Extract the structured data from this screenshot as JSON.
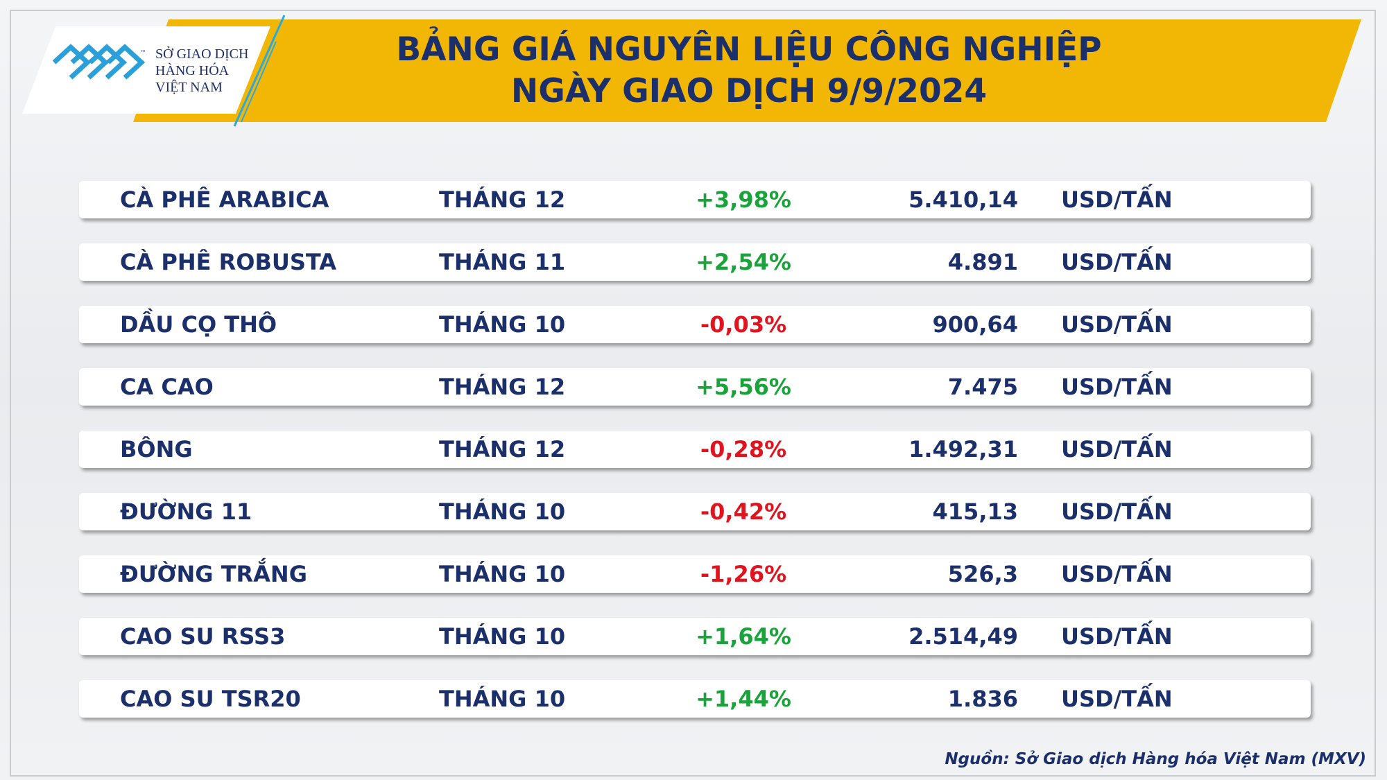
{
  "logo": {
    "lines": [
      "SỞ GIAO DỊCH",
      "HÀNG HÓA",
      "VIỆT NAM"
    ],
    "tm": "™"
  },
  "header": {
    "title_lines": [
      "BẢNG GIÁ NGUYÊN LIỆU CÔNG NGHIỆP",
      "NGÀY GIAO DỊCH 9/9/2024"
    ]
  },
  "table": {
    "rows": [
      {
        "name": "CÀ PHÊ ARABICA",
        "month": "THÁNG 12",
        "change": "+3,98%",
        "price": "5.410,14",
        "unit": "USD/TẤN",
        "color": "#1aa33a"
      },
      {
        "name": "CÀ PHÊ ROBUSTA",
        "month": "THÁNG 11",
        "change": "+2,54%",
        "price": "4.891",
        "unit": "USD/TẤN",
        "color": "#1aa33a"
      },
      {
        "name": "DẦU CỌ THÔ",
        "month": "THÁNG 10",
        "change": "-0,03%",
        "price": "900,64",
        "unit": "USD/TẤN",
        "color": "#e0141e"
      },
      {
        "name": "CA CAO",
        "month": "THÁNG 12",
        "change": "+5,56%",
        "price": "7.475",
        "unit": "USD/TẤN",
        "color": "#1aa33a"
      },
      {
        "name": "BÔNG",
        "month": "THÁNG 12",
        "change": "-0,28%",
        "price": "1.492,31",
        "unit": "USD/TẤN",
        "color": "#e0141e"
      },
      {
        "name": "ĐƯỜNG 11",
        "month": "THÁNG 10",
        "change": "-0,42%",
        "price": "415,13",
        "unit": "USD/TẤN",
        "color": "#e0141e"
      },
      {
        "name": "ĐƯỜNG TRẮNG",
        "month": "THÁNG 10",
        "change": "-1,26%",
        "price": "526,3",
        "unit": "USD/TẤN",
        "color": "#e0141e"
      },
      {
        "name": "CAO SU RSS3",
        "month": "THÁNG 10",
        "change": "+1,64%",
        "price": "2.514,49",
        "unit": "USD/TẤN",
        "color": "#1aa33a"
      },
      {
        "name": "CAO SU TSR20",
        "month": "THÁNG 10",
        "change": "+1,44%",
        "price": "1.836",
        "unit": "USD/TẤN",
        "color": "#1aa33a"
      }
    ]
  },
  "source": "Nguồn: Sở Giao dịch Hàng hóa Việt Nam (MXV)"
}
